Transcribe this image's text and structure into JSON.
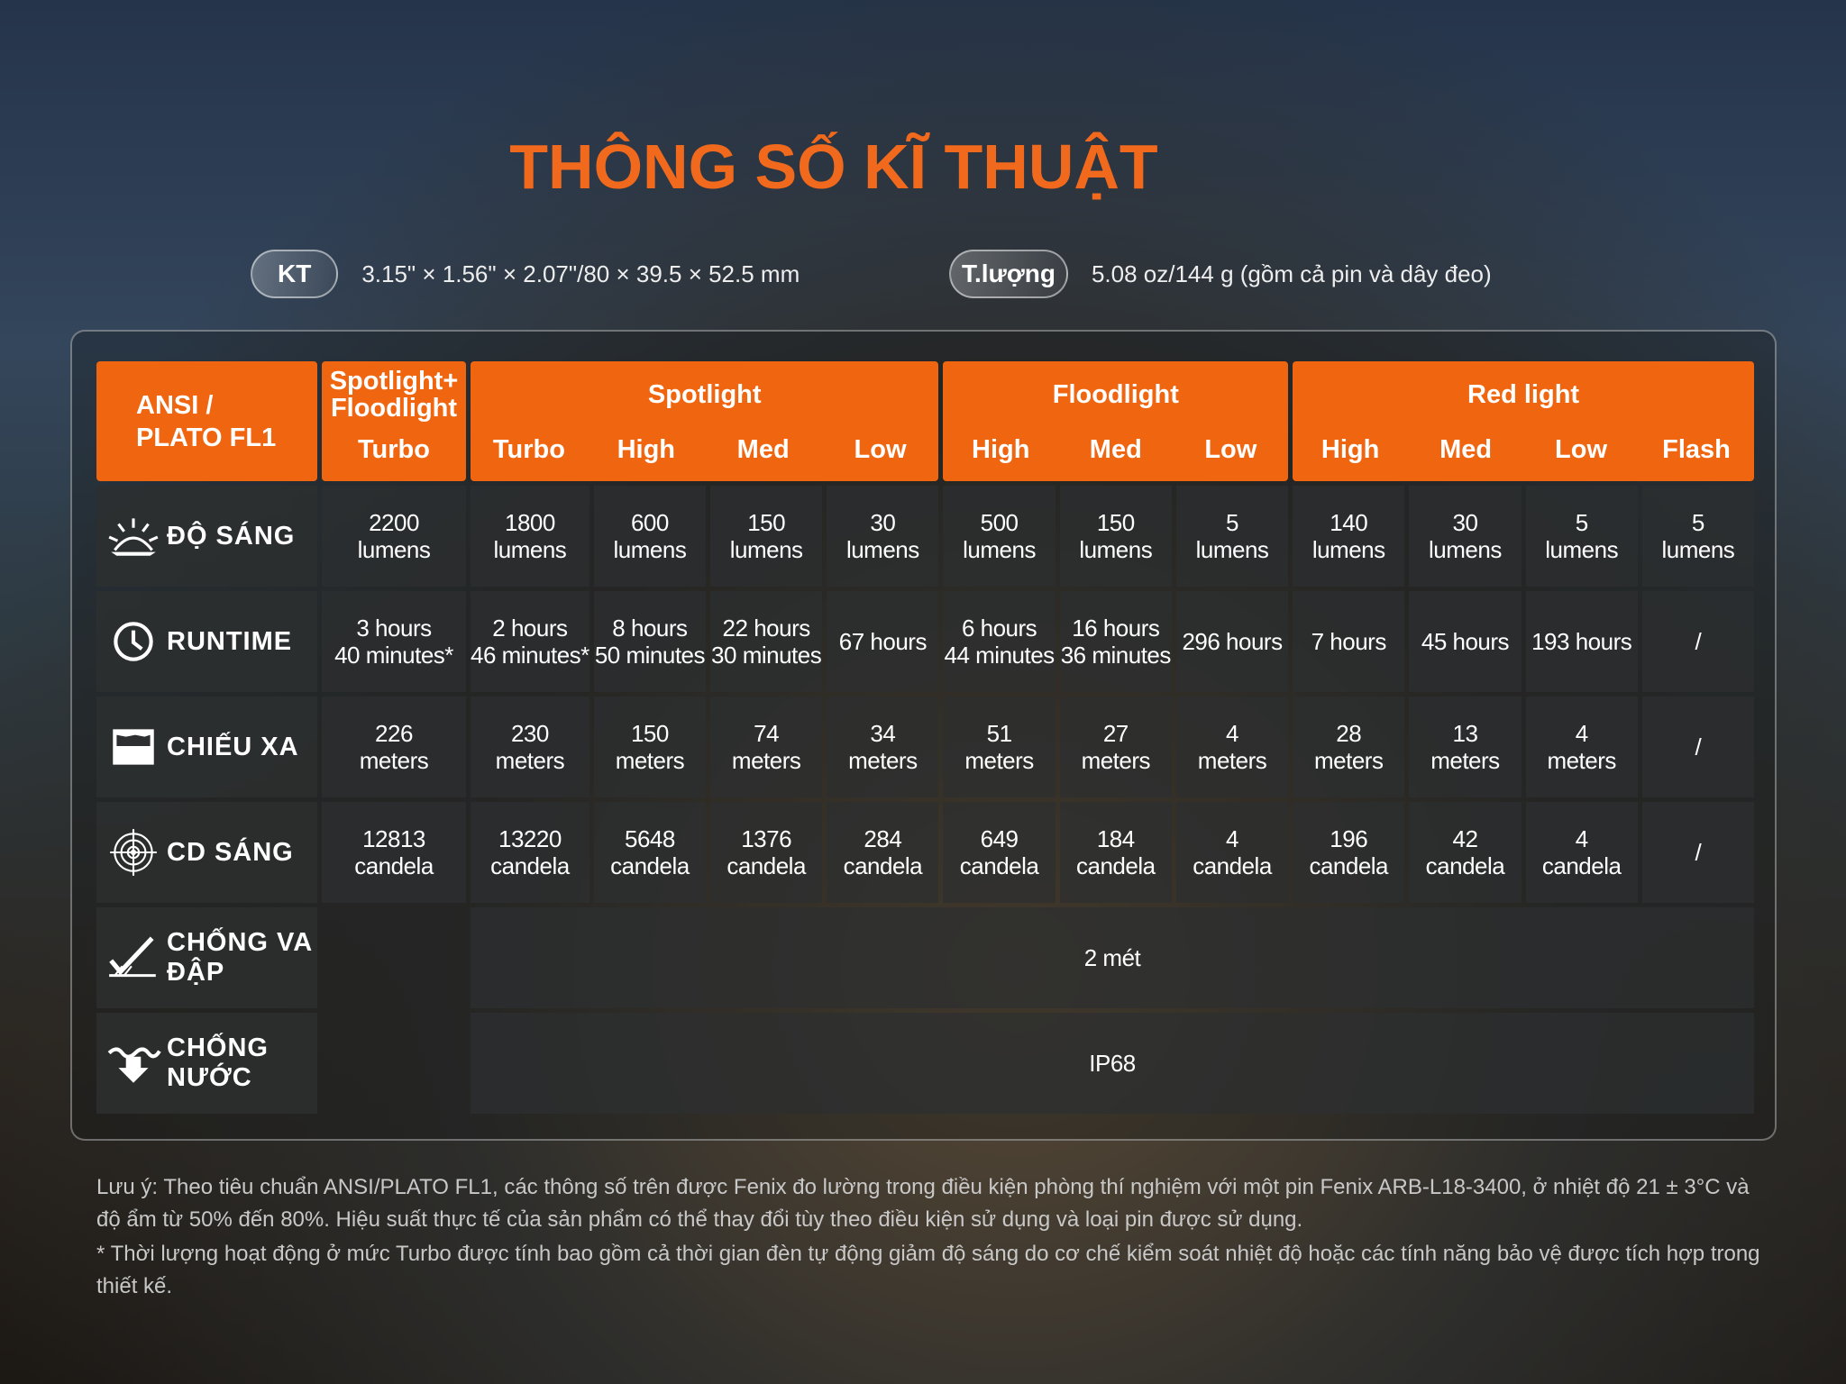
{
  "title": "THÔNG SỐ KĨ THUẬT",
  "specs": [
    {
      "label": "KT",
      "value": "3.15\" × 1.56\" × 2.07\"/80 × 39.5 × 52.5 mm"
    },
    {
      "label": "T.lượng",
      "value": "5.08 oz/144 g (gồm cả pin và dây đeo)"
    }
  ],
  "table": {
    "corner": [
      "ANSI /",
      "PLATO FL1"
    ],
    "groups": [
      {
        "name": "Spotlight+ Floodlight",
        "modes": [
          "Turbo"
        ]
      },
      {
        "name": "Spotlight",
        "modes": [
          "Turbo",
          "High",
          "Med",
          "Low"
        ]
      },
      {
        "name": "Floodlight",
        "modes": [
          "High",
          "Med",
          "Low"
        ]
      },
      {
        "name": "Red light",
        "modes": [
          "High",
          "Med",
          "Low",
          "Flash"
        ]
      }
    ],
    "rows": [
      {
        "label": "ĐỘ SÁNG",
        "cells": [
          [
            "2200",
            "lumens"
          ],
          [
            "1800",
            "lumens"
          ],
          [
            "600",
            "lumens"
          ],
          [
            "150",
            "lumens"
          ],
          [
            "30",
            "lumens"
          ],
          [
            "500",
            "lumens"
          ],
          [
            "150",
            "lumens"
          ],
          [
            "5",
            "lumens"
          ],
          [
            "140",
            "lumens"
          ],
          [
            "30",
            "lumens"
          ],
          [
            "5",
            "lumens"
          ],
          [
            "5",
            "lumens"
          ]
        ]
      },
      {
        "label": "RUNTIME",
        "cells": [
          [
            "3 hours",
            "40 minutes*"
          ],
          [
            "2 hours",
            "46 minutes*"
          ],
          [
            "8 hours",
            "50 minutes"
          ],
          [
            "22 hours",
            "30 minutes"
          ],
          [
            "67 hours"
          ],
          [
            "6 hours",
            "44 minutes"
          ],
          [
            "16 hours",
            "36 minutes"
          ],
          [
            "296 hours"
          ],
          [
            "7 hours"
          ],
          [
            "45 hours"
          ],
          [
            "193 hours"
          ],
          [
            "/"
          ]
        ]
      },
      {
        "label": "CHIẾU XA",
        "cells": [
          [
            "226",
            "meters"
          ],
          [
            "230",
            "meters"
          ],
          [
            "150",
            "meters"
          ],
          [
            "74",
            "meters"
          ],
          [
            "34",
            "meters"
          ],
          [
            "51",
            "meters"
          ],
          [
            "27",
            "meters"
          ],
          [
            "4",
            "meters"
          ],
          [
            "28",
            "meters"
          ],
          [
            "13",
            "meters"
          ],
          [
            "4",
            "meters"
          ],
          [
            "/"
          ]
        ]
      },
      {
        "label": "CD SÁNG",
        "cells": [
          [
            "12813",
            "candela"
          ],
          [
            "13220",
            "candela"
          ],
          [
            "5648",
            "candela"
          ],
          [
            "1376",
            "candela"
          ],
          [
            "284",
            "candela"
          ],
          [
            "649",
            "candela"
          ],
          [
            "184",
            "candela"
          ],
          [
            "4",
            "candela"
          ],
          [
            "196",
            "candela"
          ],
          [
            "42",
            "candela"
          ],
          [
            "4",
            "candela"
          ],
          [
            "/"
          ]
        ]
      },
      {
        "label": "CHỐNG VA ĐẬP",
        "span": "2 mét"
      },
      {
        "label": "CHỐNG NƯỚC",
        "span": "IP68"
      }
    ]
  },
  "notes": [
    "Lưu ý: Theo tiêu chuẩn ANSI/PLATO FL1, các thông số trên được Fenix đo lường trong điều kiện phòng thí nghiệm với một pin Fenix ARB-L18-3400, ở nhiệt độ 21 ± 3°C và độ ẩm từ 50% đến 80%. Hiệu suất thực tế của sản phẩm có thể thay đổi tùy theo điều kiện sử dụng và loại pin được sử dụng.",
    "* Thời lượng hoạt động ở mức Turbo được tính bao gồm cả thời gian đèn tự động giảm độ sáng do cơ chế kiểm soát nhiệt độ hoặc các tính năng bảo vệ được tích hợp trong thiết kế."
  ]
}
